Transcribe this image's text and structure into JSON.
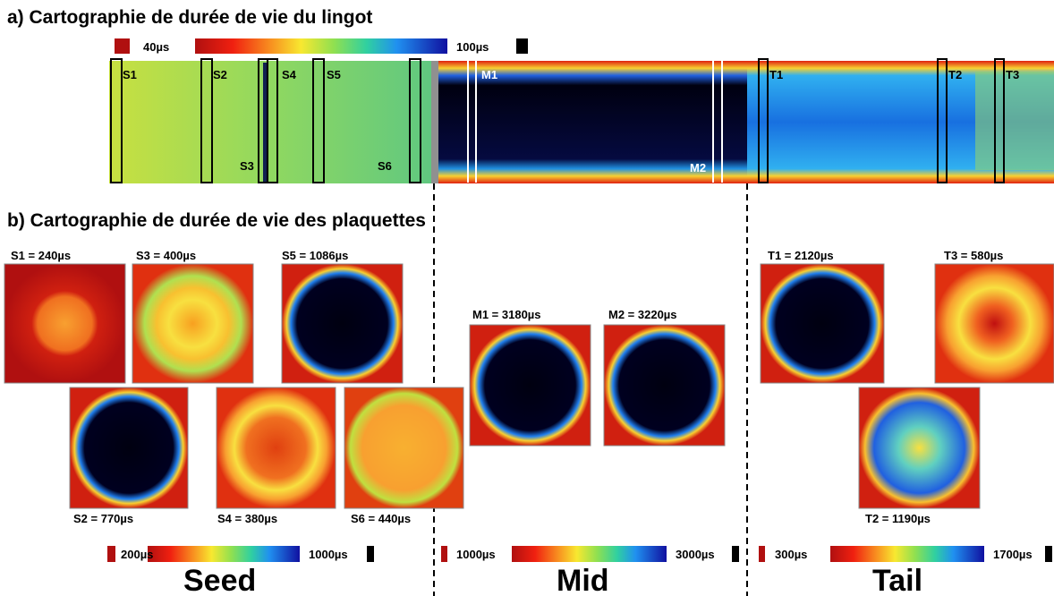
{
  "section_a": {
    "title": "a) Cartographie de durée de vie du lingot",
    "colorbar": {
      "min_label": "40µs",
      "max_label": "100µs"
    },
    "ingot_labels": [
      "S1",
      "S2",
      "S3",
      "S4",
      "S5",
      "S6",
      "M1",
      "M2",
      "T1",
      "T2",
      "T3"
    ]
  },
  "section_b": {
    "title": "b) Cartographie de durée de vie des plaquettes",
    "wafers": [
      {
        "label": "S1 = 240µs"
      },
      {
        "label": "S3 = 400µs"
      },
      {
        "label": "S5 = 1086µs"
      },
      {
        "label": "S2 = 770µs"
      },
      {
        "label": "S4 = 380µs"
      },
      {
        "label": "S6 = 440µs"
      },
      {
        "label": "M1 = 3180µs"
      },
      {
        "label": "M2 = 3220µs"
      },
      {
        "label": "T1 = 2120µs"
      },
      {
        "label": "T3 = 580µs"
      },
      {
        "label": "T2 = 1190µs"
      }
    ],
    "colorbars": [
      {
        "min_label": "200µs",
        "max_label": "1000µs",
        "group": "Seed"
      },
      {
        "min_label": "1000µs",
        "max_label": "3000µs",
        "group": "Mid"
      },
      {
        "min_label": "300µs",
        "max_label": "1700µs",
        "group": "Tail"
      }
    ]
  }
}
